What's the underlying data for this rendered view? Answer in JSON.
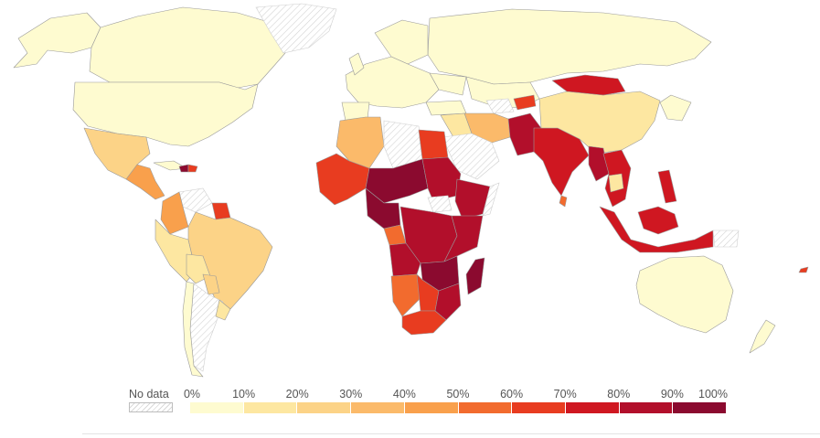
{
  "legend": {
    "no_data_label": "No data",
    "ticks": [
      "0%",
      "10%",
      "20%",
      "30%",
      "40%",
      "50%",
      "60%",
      "70%",
      "80%",
      "90%",
      "100%"
    ],
    "colors": [
      "#fefbd0",
      "#fde7a1",
      "#fcd387",
      "#fbba6a",
      "#f9a04c",
      "#f26b2e",
      "#e83c20",
      "#cf1721",
      "#b20f2b",
      "#8b0a2f"
    ]
  },
  "no_data_color": "#e8e8e8"
}
